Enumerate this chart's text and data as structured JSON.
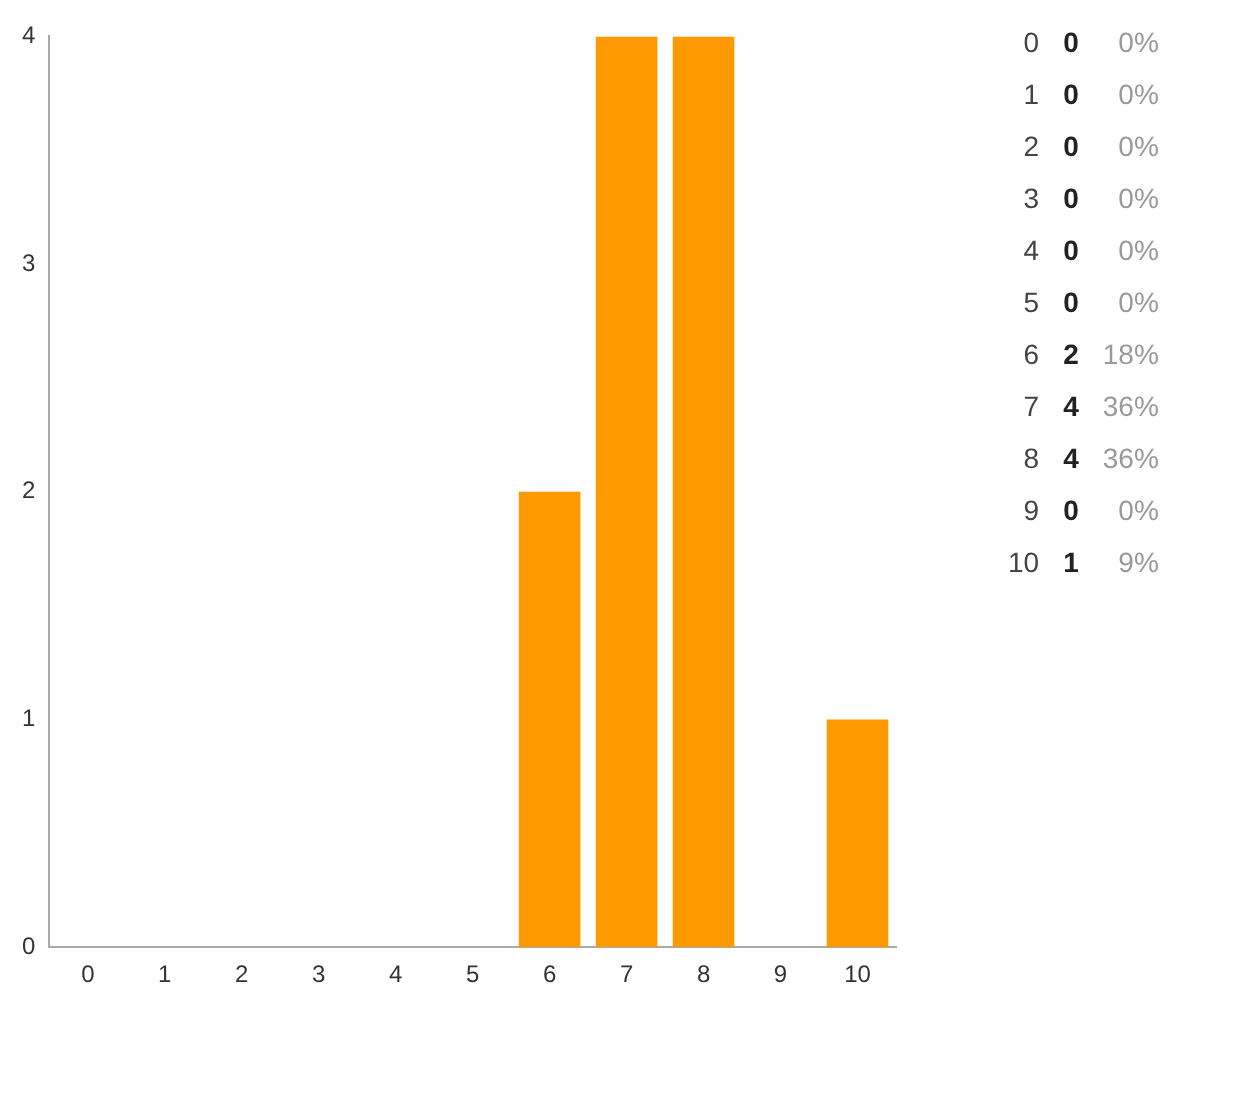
{
  "chart_data": {
    "type": "bar",
    "categories": [
      "0",
      "1",
      "2",
      "3",
      "4",
      "5",
      "6",
      "7",
      "8",
      "9",
      "10"
    ],
    "values": [
      0,
      0,
      0,
      0,
      0,
      0,
      2,
      4,
      4,
      0,
      1
    ],
    "color": "#ff9900",
    "ylim": [
      0,
      4
    ],
    "yticks": [
      0,
      1,
      2,
      3,
      4
    ],
    "grid": false,
    "annotations": [
      "0%",
      "0%",
      "0%",
      "0%",
      "0%",
      "0%",
      "18%",
      "36%",
      "36%",
      "0%",
      "9%"
    ]
  }
}
